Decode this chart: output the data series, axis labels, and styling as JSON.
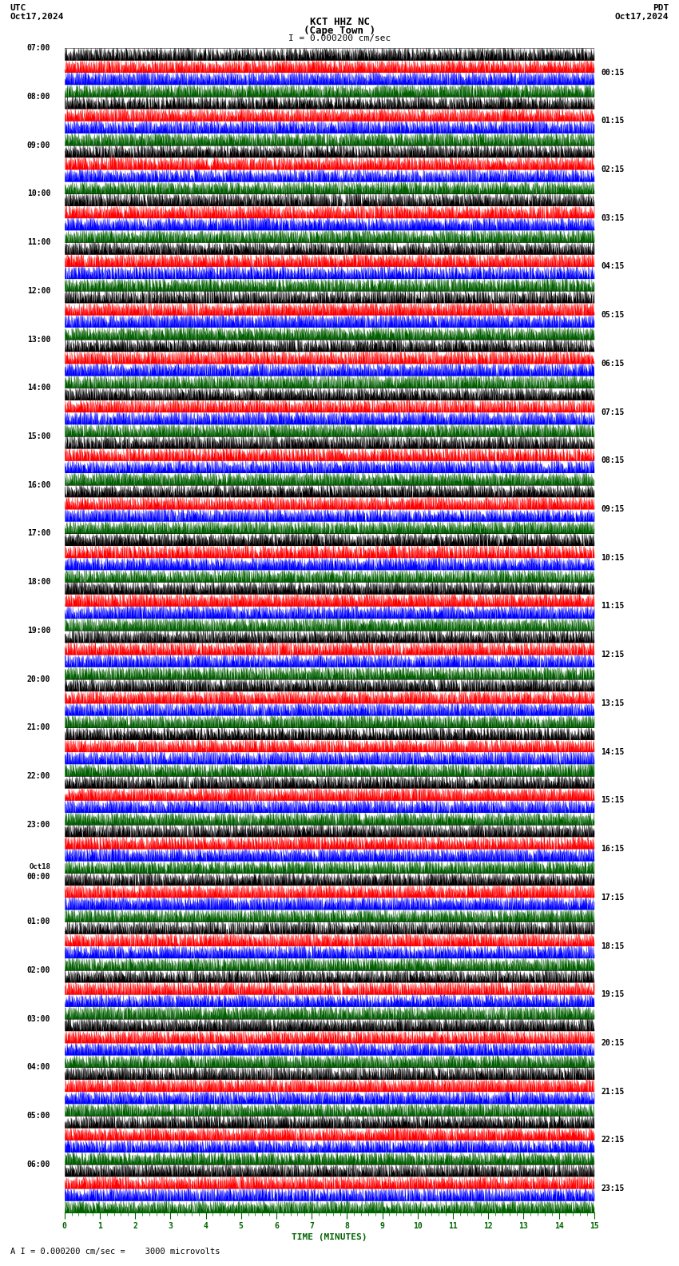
{
  "title_line1": "KCT HHZ NC",
  "title_line2": "(Cape Town )",
  "scale_label": "I = 0.000200 cm/sec",
  "utc_label": "UTC",
  "utc_date": "Oct17,2024",
  "pdt_label": "PDT",
  "pdt_date": "Oct17,2024",
  "bottom_label": "A I = 0.000200 cm/sec =    3000 microvolts",
  "xlabel": "TIME (MINUTES)",
  "left_times_labels": [
    "07:00",
    "08:00",
    "09:00",
    "10:00",
    "11:00",
    "12:00",
    "13:00",
    "14:00",
    "15:00",
    "16:00",
    "17:00",
    "18:00",
    "19:00",
    "20:00",
    "21:00",
    "22:00",
    "23:00",
    "Oct18\n00:00",
    "01:00",
    "02:00",
    "03:00",
    "04:00",
    "05:00",
    "06:00"
  ],
  "left_times_rows": [
    0,
    4,
    8,
    12,
    16,
    20,
    24,
    28,
    32,
    36,
    40,
    44,
    48,
    52,
    56,
    60,
    64,
    68,
    72,
    76,
    80,
    84,
    88,
    92
  ],
  "right_times_labels": [
    "00:15",
    "01:15",
    "02:15",
    "03:15",
    "04:15",
    "05:15",
    "06:15",
    "07:15",
    "08:15",
    "09:15",
    "10:15",
    "11:15",
    "12:15",
    "13:15",
    "14:15",
    "15:15",
    "16:15",
    "17:15",
    "18:15",
    "19:15",
    "20:15",
    "21:15",
    "22:15",
    "23:15"
  ],
  "right_times_rows": [
    2,
    6,
    10,
    14,
    18,
    22,
    26,
    30,
    34,
    38,
    42,
    46,
    50,
    54,
    58,
    62,
    66,
    70,
    74,
    78,
    82,
    86,
    90,
    94
  ],
  "n_groups": 24,
  "n_subrows": 4,
  "n_minutes": 15,
  "colors": [
    "black",
    "red",
    "blue",
    "#006000"
  ],
  "bg_color": "white",
  "seed": 42,
  "samples_per_row": 1800,
  "amplitude": 0.48
}
